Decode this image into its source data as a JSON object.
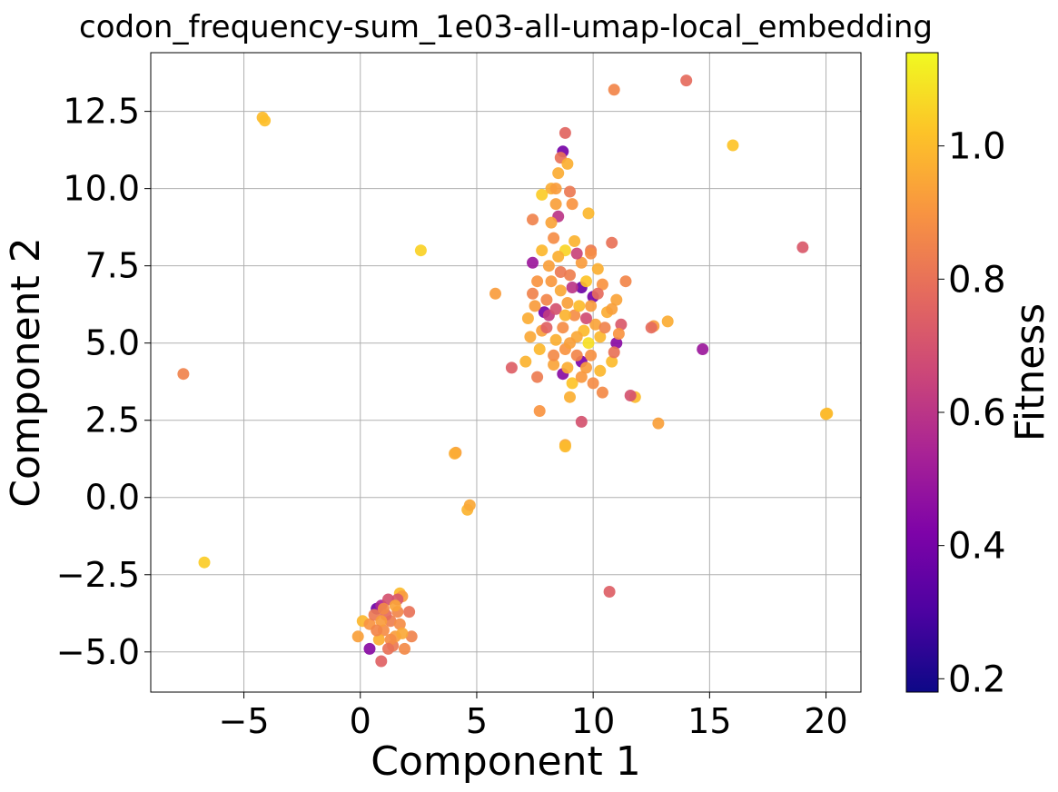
{
  "chart_data": {
    "type": "scatter",
    "title": "codon_frequency-sum_1e03-all-umap-local_embedding",
    "xlabel": "Component 1",
    "ylabel": "Component 2",
    "colorbar_label": "Fitness",
    "xlim": [
      -9,
      21.5
    ],
    "ylim": [
      -6.3,
      14.4
    ],
    "x_ticks": [
      -5,
      0,
      5,
      10,
      15,
      20
    ],
    "x_tick_labels": [
      "−5",
      "0",
      "5",
      "10",
      "15",
      "20"
    ],
    "y_ticks": [
      -5,
      -2.5,
      0,
      2.5,
      5,
      7.5,
      10,
      12.5
    ],
    "y_tick_labels": [
      "−5.0",
      "−2.5",
      "0.0",
      "2.5",
      "5.0",
      "7.5",
      "10.0",
      "12.5"
    ],
    "colorbar_range": [
      0.18,
      1.14
    ],
    "colorbar_ticks": [
      0.2,
      0.4,
      0.6,
      0.8,
      1.0
    ],
    "colorbar_tick_labels": [
      "0.2",
      "0.4",
      "0.6",
      "0.8",
      "1.0"
    ],
    "colormap": "plasma",
    "grid": true,
    "points": [
      [
        -4.2,
        12.3,
        1.0
      ],
      [
        -4.1,
        12.2,
        1.01
      ],
      [
        2.6,
        8.0,
        1.05
      ],
      [
        -7.6,
        4.0,
        0.85
      ],
      [
        -6.7,
        -2.1,
        1.04
      ],
      [
        4.1,
        1.45,
        0.93
      ],
      [
        4.05,
        1.42,
        0.96
      ],
      [
        4.6,
        -0.4,
        0.98
      ],
      [
        4.7,
        -0.25,
        0.95
      ],
      [
        10.9,
        13.2,
        0.86
      ],
      [
        14.0,
        13.5,
        0.78
      ],
      [
        16.0,
        11.4,
        1.02
      ],
      [
        19.0,
        8.1,
        0.72
      ],
      [
        20.0,
        2.7,
        0.99
      ],
      [
        20.05,
        2.72,
        1.0
      ],
      [
        14.7,
        4.8,
        0.5
      ],
      [
        12.8,
        2.4,
        0.93
      ],
      [
        10.7,
        -3.05,
        0.74
      ],
      [
        11.8,
        3.25,
        1.0
      ],
      [
        11.6,
        3.3,
        0.7
      ],
      [
        12.6,
        5.55,
        0.92
      ],
      [
        12.5,
        5.5,
        0.78
      ],
      [
        13.2,
        5.7,
        0.96
      ],
      [
        9.5,
        2.45,
        0.7
      ],
      [
        7.7,
        2.8,
        0.9
      ],
      [
        8.8,
        1.7,
        0.95
      ],
      [
        8.8,
        1.65,
        1.0
      ],
      [
        6.5,
        4.2,
        0.74
      ],
      [
        5.8,
        6.6,
        0.92
      ],
      [
        7.4,
        9.0,
        0.85
      ],
      [
        8.8,
        11.8,
        0.76
      ],
      [
        8.7,
        11.2,
        0.4
      ],
      [
        8.6,
        11.0,
        0.8
      ],
      [
        8.9,
        10.8,
        0.97
      ],
      [
        9.0,
        9.9,
        0.82
      ],
      [
        9.8,
        9.2,
        0.99
      ],
      [
        8.2,
        10.0,
        0.96
      ],
      [
        7.8,
        9.8,
        1.04
      ],
      [
        8.4,
        9.5,
        0.93
      ],
      [
        8.5,
        9.1,
        0.6
      ],
      [
        10.8,
        8.25,
        0.8
      ],
      [
        11.4,
        7.0,
        0.86
      ],
      [
        11.0,
        6.4,
        0.94
      ],
      [
        11.0,
        5.0,
        0.45
      ],
      [
        11.2,
        5.6,
        0.72
      ],
      [
        10.8,
        4.4,
        1.0
      ],
      [
        10.0,
        3.7,
        0.88
      ],
      [
        10.4,
        3.4,
        0.87
      ],
      [
        10.3,
        4.1,
        0.99
      ],
      [
        9.0,
        3.25,
        0.97
      ],
      [
        9.1,
        3.7,
        1.02
      ],
      [
        8.7,
        4.0,
        0.45
      ],
      [
        8.3,
        4.3,
        0.94
      ],
      [
        7.1,
        4.4,
        0.98
      ],
      [
        7.6,
        3.9,
        0.83
      ],
      [
        10.0,
        6.5,
        0.4
      ],
      [
        9.5,
        4.4,
        0.42
      ],
      [
        7.9,
        6.0,
        0.4
      ],
      [
        7.4,
        7.6,
        0.5
      ],
      [
        9.5,
        6.8,
        0.38
      ],
      [
        8.1,
        5.9,
        0.62
      ],
      [
        7.4,
        6.6,
        0.85
      ],
      [
        7.2,
        5.8,
        0.96
      ],
      [
        7.3,
        5.2,
        0.95
      ],
      [
        7.8,
        8.0,
        0.99
      ],
      [
        8.3,
        8.4,
        0.88
      ],
      [
        8.8,
        8.0,
        1.06
      ],
      [
        9.5,
        7.6,
        0.92
      ],
      [
        9.9,
        8.0,
        0.83
      ],
      [
        10.2,
        7.4,
        0.97
      ],
      [
        10.4,
        6.9,
        0.9
      ],
      [
        10.6,
        6.0,
        0.96
      ],
      [
        9.8,
        5.0,
        1.08
      ],
      [
        9.6,
        5.4,
        1.0
      ],
      [
        9.2,
        5.9,
        0.88
      ],
      [
        8.9,
        6.3,
        0.93
      ],
      [
        8.6,
        6.7,
        0.95
      ],
      [
        8.2,
        7.0,
        0.91
      ],
      [
        8.0,
        6.4,
        0.86
      ],
      [
        7.8,
        5.4,
        0.93
      ],
      [
        8.4,
        5.1,
        0.97
      ],
      [
        8.8,
        4.8,
        0.9
      ],
      [
        9.3,
        4.6,
        0.86
      ],
      [
        9.7,
        4.2,
        0.92
      ],
      [
        10.1,
        5.6,
        0.94
      ],
      [
        10.3,
        5.2,
        0.99
      ],
      [
        9.0,
        7.2,
        0.84
      ],
      [
        8.5,
        7.8,
        0.97
      ],
      [
        9.2,
        8.3,
        0.98
      ],
      [
        9.7,
        7.0,
        1.02
      ],
      [
        8.1,
        7.5,
        0.93
      ],
      [
        7.6,
        7.0,
        0.9
      ],
      [
        7.5,
        6.2,
        0.92
      ],
      [
        8.7,
        5.5,
        0.88
      ],
      [
        9.3,
        5.2,
        0.95
      ],
      [
        9.9,
        6.2,
        0.92
      ],
      [
        10.5,
        5.5,
        0.85
      ],
      [
        10.9,
        4.7,
        0.8
      ],
      [
        8.3,
        4.6,
        0.87
      ],
      [
        8.9,
        4.2,
        0.96
      ],
      [
        9.5,
        3.9,
        0.91
      ],
      [
        7.7,
        4.8,
        0.99
      ],
      [
        9.1,
        6.8,
        0.6
      ],
      [
        8.4,
        6.1,
        0.7
      ],
      [
        9.7,
        5.8,
        0.68
      ],
      [
        10.2,
        6.6,
        0.78
      ],
      [
        8.6,
        7.3,
        0.82
      ],
      [
        8.0,
        5.5,
        0.75
      ],
      [
        9.3,
        7.9,
        0.65
      ],
      [
        8.8,
        5.9,
        0.98
      ],
      [
        9.4,
        6.2,
        1.0
      ],
      [
        8.2,
        8.9,
        0.94
      ],
      [
        9.1,
        9.5,
        0.9
      ],
      [
        8.5,
        10.5,
        0.96
      ],
      [
        8.4,
        10.0,
        0.92
      ],
      [
        9.9,
        7.9,
        0.88
      ],
      [
        10.8,
        6.1,
        0.93
      ],
      [
        11.1,
        5.3,
        0.9
      ],
      [
        9.9,
        4.6,
        0.89
      ],
      [
        9.0,
        5.0,
        0.93
      ],
      [
        0.7,
        -3.6,
        0.38
      ],
      [
        0.9,
        -3.5,
        0.55
      ],
      [
        1.7,
        -3.1,
        1.0
      ],
      [
        1.8,
        -3.2,
        0.92
      ],
      [
        1.6,
        -3.3,
        0.72
      ],
      [
        1.2,
        -3.3,
        0.7
      ],
      [
        0.1,
        -4.0,
        0.99
      ],
      [
        0.4,
        -4.1,
        0.9
      ],
      [
        -0.1,
        -4.5,
        0.93
      ],
      [
        0.4,
        -4.9,
        0.45
      ],
      [
        0.9,
        -5.3,
        0.75
      ],
      [
        1.4,
        -4.8,
        0.82
      ],
      [
        1.9,
        -4.9,
        0.87
      ],
      [
        2.2,
        -4.5,
        0.85
      ],
      [
        2.1,
        -3.7,
        0.8
      ],
      [
        1.3,
        -4.0,
        0.84
      ],
      [
        1.0,
        -4.3,
        0.88
      ],
      [
        0.8,
        -4.6,
        0.97
      ],
      [
        1.5,
        -4.5,
        0.92
      ],
      [
        1.7,
        -4.1,
        0.88
      ],
      [
        0.6,
        -3.8,
        0.82
      ],
      [
        1.1,
        -3.8,
        0.78
      ],
      [
        1.6,
        -3.7,
        0.86
      ],
      [
        0.9,
        -4.0,
        0.92
      ],
      [
        1.3,
        -4.6,
        0.88
      ],
      [
        1.8,
        -4.4,
        0.95
      ],
      [
        0.7,
        -4.3,
        0.86
      ],
      [
        1.2,
        -4.9,
        0.8
      ],
      [
        1.5,
        -3.5,
        0.94
      ],
      [
        1.0,
        -3.6,
        0.87
      ]
    ]
  }
}
